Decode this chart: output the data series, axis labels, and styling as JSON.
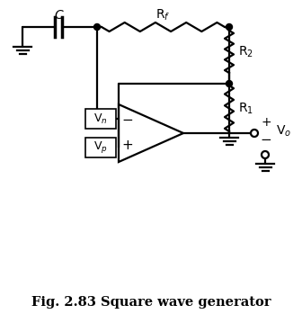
{
  "title": "Fig. 2.83 Square wave generator",
  "title_fontsize": 10.5,
  "bg_color": "#ffffff",
  "line_color": "#000000",
  "figsize": [
    3.36,
    3.49
  ],
  "dpi": 100
}
